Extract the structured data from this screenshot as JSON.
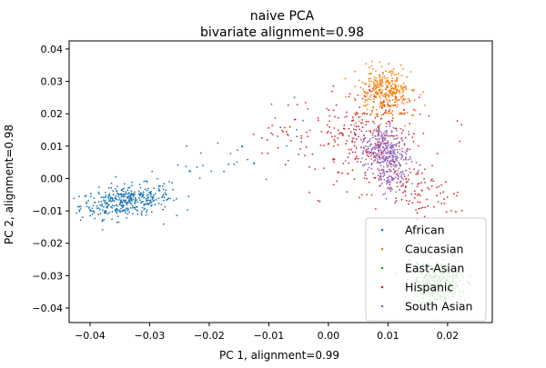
{
  "chart_data": {
    "type": "scatter",
    "title": "naive PCA",
    "subtitle": "bivariate alignment=0.98",
    "xlabel": "PC 1, alignment=0.99",
    "ylabel": "PC 2, alignment=0.98",
    "xlim": [
      -0.0435,
      0.0275
    ],
    "ylim": [
      -0.0445,
      0.0425
    ],
    "xticks": [
      -0.04,
      -0.03,
      -0.02,
      -0.01,
      0.0,
      0.01,
      0.02
    ],
    "xtick_labels": [
      "−0.04",
      "−0.03",
      "−0.02",
      "−0.01",
      "0.00",
      "0.01",
      "0.02"
    ],
    "yticks": [
      -0.04,
      -0.03,
      -0.02,
      -0.01,
      0.0,
      0.01,
      0.02,
      0.03,
      0.04
    ],
    "ytick_labels": [
      "−0.04",
      "−0.03",
      "−0.02",
      "−0.01",
      "0.00",
      "0.01",
      "0.02",
      "0.03",
      "0.04"
    ],
    "grid": false,
    "legend_position": "lower-right",
    "series": [
      {
        "name": "African",
        "color": "#1f77b4",
        "clusters": [
          {
            "cx": -0.034,
            "cy": -0.007,
            "sx": 0.0038,
            "sy": 0.0025,
            "rho": 0.3,
            "n": 380
          }
        ],
        "bridge": {
          "from": [
            -0.03,
            -0.004
          ],
          "to": [
            -0.005,
            0.012
          ],
          "n": 45,
          "noise": 0.005
        }
      },
      {
        "name": "Caucasian",
        "color": "#ff7f0e",
        "clusters": [
          {
            "cx": 0.0095,
            "cy": 0.0265,
            "sx": 0.0024,
            "sy": 0.0035,
            "rho": 0.0,
            "n": 360
          }
        ]
      },
      {
        "name": "East-Asian",
        "color": "#2ca02c",
        "clusters": [
          {
            "cx": 0.0185,
            "cy": -0.0325,
            "sx": 0.0022,
            "sy": 0.0035,
            "rho": 0.0,
            "n": 320
          }
        ]
      },
      {
        "name": "Hispanic",
        "color": "#d62728",
        "clusters": [
          {
            "cx": 0.007,
            "cy": 0.012,
            "sx": 0.0045,
            "sy": 0.008,
            "rho": 0.0,
            "n": 240
          },
          {
            "cx": 0.0155,
            "cy": -0.0045,
            "sx": 0.0035,
            "sy": 0.0042,
            "rho": -0.45,
            "n": 90
          }
        ],
        "bridge": {
          "from": [
            -0.012,
            0.013
          ],
          "to": [
            0.004,
            0.016
          ],
          "n": 55,
          "noise": 0.004
        }
      },
      {
        "name": "South Asian",
        "color": "#9467bd",
        "clusters": [
          {
            "cx": 0.0095,
            "cy": 0.0085,
            "sx": 0.002,
            "sy": 0.0038,
            "rho": -0.2,
            "n": 330
          },
          {
            "cx": 0.0105,
            "cy": 0.0005,
            "sx": 0.0013,
            "sy": 0.0025,
            "rho": 0.0,
            "n": 70
          }
        ]
      }
    ]
  }
}
